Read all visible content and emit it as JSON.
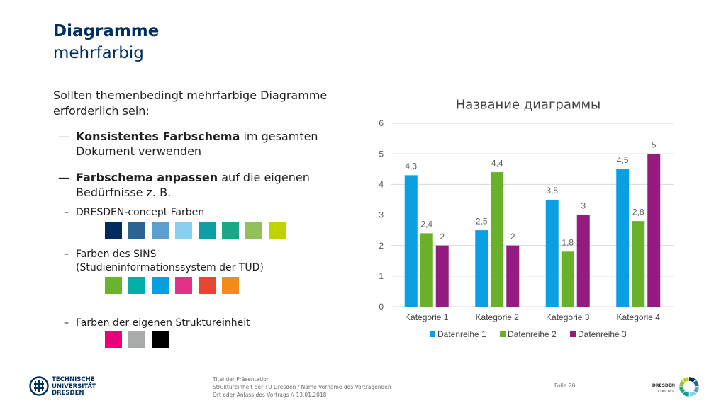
{
  "slide": {
    "title": "Diagramme",
    "subtitle": "mehrfarbig"
  },
  "content": {
    "intro": "Sollten themenbedingt mehrfarbige Diagramme erforderlich sein:",
    "bullets": [
      {
        "marker": "—",
        "bold": "Konsistentes Farbschema",
        "text": "im gesamten Dokument verwenden"
      },
      {
        "marker": "—",
        "bold": "Farbschema anpassen",
        "text": "auf die eigenen Bedürfnisse z. B."
      }
    ],
    "sub_bullets": [
      {
        "marker": "–",
        "text": "DRESDEN-concept Farben",
        "swatches": [
          "#002b5c",
          "#2a6495",
          "#5b9fcf",
          "#87d0f0",
          "#0a9ea5",
          "#1ba784",
          "#92c15a",
          "#bfd300"
        ]
      },
      {
        "marker": "–",
        "text": "Farben des SINS (Studieninformationssystem der TUD)",
        "swatches": [
          "#69b32d",
          "#00afa8",
          "#0a9ee0",
          "#e3318a",
          "#e84530",
          "#f28c18"
        ]
      },
      {
        "marker": "–",
        "text": "Farben der eigenen Struktureinheit",
        "swatches": [
          "#e8007a",
          "#a9aaab",
          "#000000"
        ]
      }
    ]
  },
  "chart_data": {
    "type": "bar",
    "title": "Название диаграммы",
    "categories": [
      "Kategorie 1",
      "Kategorie 2",
      "Kategorie 3",
      "Kategorie 4"
    ],
    "series": [
      {
        "name": "Datenreihe 1",
        "values": [
          4.3,
          2.5,
          3.5,
          4.5
        ],
        "labels": [
          "4,3",
          "2,5",
          "3,5",
          "4,5"
        ],
        "color": "#0a9fe3"
      },
      {
        "name": "Datenreihe 2",
        "values": [
          2.4,
          4.4,
          1.8,
          2.8
        ],
        "labels": [
          "2,4",
          "4,4",
          "1,8",
          "2,8"
        ],
        "color": "#6ab12b"
      },
      {
        "name": "Datenreihe 3",
        "values": [
          2,
          2,
          3,
          5
        ],
        "labels": [
          "2",
          "2",
          "3",
          "5"
        ],
        "color": "#941b80"
      }
    ],
    "y_ticks": [
      0,
      1,
      2,
      3,
      4,
      5,
      6
    ],
    "ylim": [
      0,
      6
    ],
    "grid": true
  },
  "footer": {
    "presentation_title": "Titel der Präsentation",
    "unit_line": "Struktureinheit der TU Dresden / Name Vorname des Vortragenden",
    "event_line": "Ort oder Anlass des Vortrags // 13.01.2018",
    "slide_number": "Folie 20"
  },
  "logos": {
    "tud": {
      "line1": "TECHNISCHE",
      "line2": "UNIVERSITÄT",
      "line3": "DRESDEN"
    },
    "dresden_concept": {
      "name": "DRESDEN",
      "tagline": "concept"
    }
  },
  "colors": {
    "title": "#00305d",
    "text": "#1f1f1f",
    "grid": "#d9d9d9"
  }
}
